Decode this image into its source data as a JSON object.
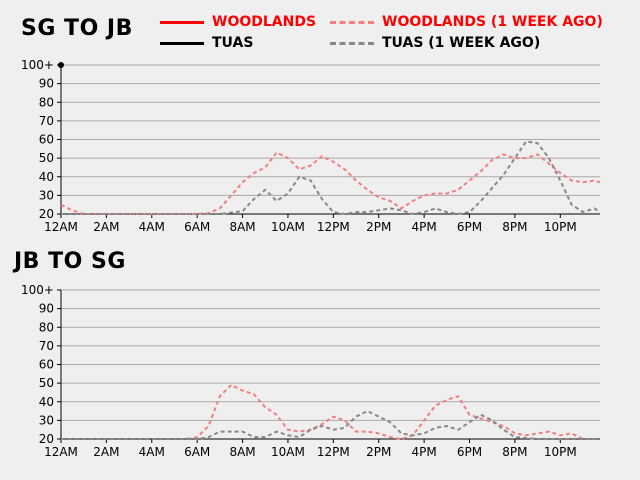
{
  "legend": [
    {
      "name": "WOODLANDS",
      "color": "#ff0000",
      "dashed": false
    },
    {
      "name": "WOODLANDS (1 WEEK AGO)",
      "color": "#f08080",
      "dashed": true
    },
    {
      "name": "TUAS",
      "color": "#000000",
      "dashed": false
    },
    {
      "name": "TUAS (1 WEEK AGO)",
      "color": "#888888",
      "dashed": true
    }
  ],
  "chart_data": [
    {
      "type": "line",
      "title": "SG TO JB",
      "xlabel": "",
      "ylabel": "",
      "ylim": [
        20,
        100
      ],
      "xlim": [
        0,
        23.75
      ],
      "grid": true,
      "yticks": [
        "20",
        "30",
        "40",
        "50",
        "60",
        "70",
        "80",
        "90",
        "100+"
      ],
      "xticks": [
        "12AM",
        "2AM",
        "4AM",
        "6AM",
        "8AM",
        "10AM",
        "12PM",
        "2PM",
        "4PM",
        "6PM",
        "8PM",
        "10PM"
      ],
      "series": [
        {
          "name": "WOODLANDS (1 WEEK AGO)",
          "x": [
            0,
            0.5,
            1,
            2,
            3,
            4,
            5,
            6,
            6.5,
            7,
            7.5,
            8,
            8.5,
            9,
            9.5,
            10,
            10.5,
            11,
            11.5,
            12,
            12.5,
            13,
            13.5,
            14,
            14.5,
            15,
            15.5,
            16,
            16.5,
            17,
            17.5,
            18,
            18.5,
            19,
            19.5,
            20,
            20.5,
            21,
            21.5,
            22,
            22.5,
            23,
            23.5,
            23.75
          ],
          "values": [
            25,
            22,
            20,
            20,
            20,
            20,
            20,
            20,
            20.5,
            23,
            30,
            37,
            42,
            45,
            53,
            50,
            44,
            46,
            51,
            48,
            44,
            38,
            33,
            29,
            27,
            23,
            27,
            30,
            31,
            31,
            33,
            38,
            43,
            49,
            52,
            50,
            50,
            52,
            47,
            42,
            38,
            37,
            38,
            37
          ]
        },
        {
          "name": "TUAS (1 WEEK AGO)",
          "x": [
            0,
            2,
            4,
            6,
            7,
            8,
            8.5,
            9,
            9.5,
            10,
            10.5,
            11,
            11.5,
            12,
            12.5,
            13,
            13.5,
            14,
            14.5,
            15,
            15.5,
            16,
            16.5,
            17,
            17.5,
            18,
            18.5,
            19,
            19.5,
            20,
            20.5,
            21,
            21.5,
            22,
            22.5,
            23,
            23.5,
            23.75
          ],
          "values": [
            20,
            20,
            20,
            20,
            20,
            21.5,
            28,
            33,
            27,
            31,
            40,
            38,
            28,
            21,
            20,
            21,
            21,
            22,
            23,
            22,
            20,
            21,
            23,
            21,
            20,
            21,
            27,
            34,
            41,
            50,
            59,
            58,
            50,
            38,
            25,
            21,
            23,
            21
          ]
        }
      ]
    },
    {
      "type": "line",
      "title": "JB TO SG",
      "xlabel": "",
      "ylabel": "",
      "ylim": [
        20,
        100
      ],
      "xlim": [
        0,
        23.75
      ],
      "grid": true,
      "yticks": [
        "20",
        "30",
        "40",
        "50",
        "60",
        "70",
        "80",
        "90",
        "100+"
      ],
      "xticks": [
        "12AM",
        "2AM",
        "4AM",
        "6AM",
        "8AM",
        "10AM",
        "12PM",
        "2PM",
        "4PM",
        "6PM",
        "8PM",
        "10PM"
      ],
      "series": [
        {
          "name": "WOODLANDS (1 WEEK AGO)",
          "x": [
            0,
            2,
            4,
            5.5,
            6,
            6.5,
            7,
            7.5,
            8,
            8.5,
            9,
            9.5,
            10,
            10.5,
            11,
            11.5,
            12,
            12.5,
            13,
            13.5,
            14,
            14.5,
            15,
            15.5,
            16,
            16.5,
            17,
            17.5,
            18,
            18.5,
            19,
            19.5,
            20,
            20.5,
            21,
            21.5,
            22,
            22.5,
            23,
            23.75
          ],
          "values": [
            20,
            20,
            20,
            20,
            21,
            27,
            43,
            49,
            46,
            44,
            37,
            33,
            25,
            24,
            25,
            28,
            32,
            30,
            24,
            24,
            23,
            21,
            20,
            22,
            30,
            38,
            41,
            43,
            33,
            31,
            29,
            27,
            23,
            22,
            23,
            24,
            22,
            23,
            20,
            20
          ]
        },
        {
          "name": "TUAS (1 WEEK AGO)",
          "x": [
            0,
            2,
            4,
            6,
            6.5,
            7,
            7.5,
            8,
            8.5,
            9,
            9.5,
            10,
            10.5,
            11,
            11.5,
            12,
            12.5,
            13,
            13.5,
            14,
            14.5,
            15,
            15.5,
            16,
            16.5,
            17,
            17.5,
            18,
            18.5,
            19,
            19.5,
            20,
            21,
            22,
            23,
            23.75
          ],
          "values": [
            20,
            20,
            20,
            20,
            21,
            24,
            24,
            24,
            21,
            21,
            24,
            22,
            21,
            25,
            27,
            25,
            26,
            32,
            35,
            32,
            29,
            23,
            22,
            23,
            26,
            27,
            25,
            29,
            33,
            30,
            25,
            21,
            20,
            20,
            20,
            20
          ]
        }
      ]
    }
  ]
}
